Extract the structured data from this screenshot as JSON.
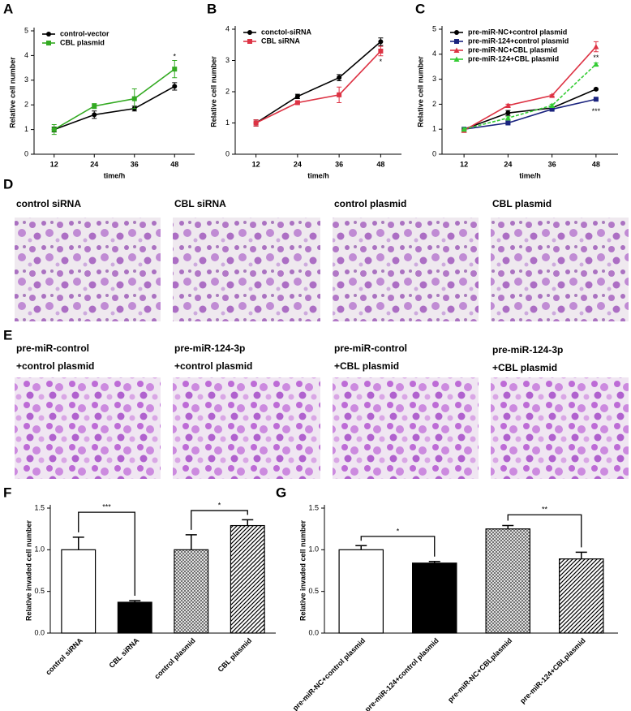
{
  "panel_labels": [
    "A",
    "B",
    "C",
    "D",
    "E",
    "F",
    "G"
  ],
  "images_d": [
    "control siRNA",
    "CBL siRNA",
    "control plasmid",
    "CBL plasmid"
  ],
  "images_e": [
    [
      "pre-miR-control",
      "+control plasmid"
    ],
    [
      "pre-miR-124-3p",
      "+control plasmid"
    ],
    [
      "pre-miR-control",
      "+CBL plasmid"
    ],
    [
      "pre-miR-124-3p",
      "+CBL plasmid"
    ]
  ],
  "chart_data": [
    {
      "type": "line",
      "xlabel": "time/h",
      "ylabel": "Relative cell number",
      "categories": [
        "12",
        "24",
        "36",
        "48"
      ],
      "ylim": [
        0,
        5
      ],
      "yticks": [
        0,
        1,
        2,
        3,
        4,
        5
      ],
      "legend": "upper left",
      "series": [
        {
          "name": "control-vector",
          "color": "#000000",
          "marker": "circle",
          "values": [
            1.0,
            1.6,
            1.85,
            2.75
          ],
          "errors": [
            0.1,
            0.15,
            0.1,
            0.15
          ]
        },
        {
          "name": "CBL plasmid",
          "color": "#33aa22",
          "marker": "square",
          "values": [
            1.0,
            1.95,
            2.25,
            3.45
          ],
          "errors": [
            0.2,
            0.1,
            0.4,
            0.35
          ]
        }
      ],
      "annotations": [
        {
          "text": "*",
          "x": "48",
          "y": 3.95
        }
      ]
    },
    {
      "type": "line",
      "xlabel": "time/h",
      "ylabel": "Relative cell number",
      "categories": [
        "12",
        "24",
        "36",
        "48"
      ],
      "ylim": [
        0,
        4
      ],
      "yticks": [
        0,
        1,
        2,
        3,
        4
      ],
      "legend": "upper left",
      "series": [
        {
          "name": "conctol-siRNA",
          "color": "#000000",
          "marker": "circle",
          "values": [
            1.0,
            1.85,
            2.45,
            3.6
          ],
          "errors": [
            0.1,
            0.07,
            0.1,
            0.12
          ]
        },
        {
          "name": "CBL siRNA",
          "color": "#dd3344",
          "marker": "square",
          "values": [
            1.0,
            1.65,
            1.9,
            3.3
          ],
          "errors": [
            0.1,
            0.03,
            0.25,
            0.15
          ]
        }
      ],
      "annotations": [
        {
          "text": "*",
          "x": "48",
          "y": 2.95
        }
      ]
    },
    {
      "type": "line",
      "xlabel": "time/h",
      "ylabel": "Relative cell number",
      "categories": [
        "12",
        "24",
        "36",
        "48"
      ],
      "ylim": [
        0,
        5
      ],
      "yticks": [
        0,
        1,
        2,
        3,
        4,
        5
      ],
      "legend": "upper left",
      "series": [
        {
          "name": "pre-miR-NC+control plasmid",
          "color": "#000000",
          "marker": "circle",
          "values": [
            1.0,
            1.65,
            1.85,
            2.6
          ],
          "errors": [
            0.05,
            0.1,
            0.05,
            0.03
          ]
        },
        {
          "name": "pre-miR-124+control plasmid",
          "color": "#1a237e",
          "marker": "square",
          "values": [
            1.0,
            1.25,
            1.8,
            2.2
          ],
          "errors": [
            0.05,
            0.05,
            0.05,
            0.03
          ]
        },
        {
          "name": "pre-miR-NC+CBL plasmid",
          "color": "#dd3344",
          "marker": "triangle",
          "values": [
            0.95,
            1.95,
            2.35,
            4.3
          ],
          "errors": [
            0.05,
            0.05,
            0.03,
            0.2
          ]
        },
        {
          "name": "pre-miR-124+CBL plasmid",
          "color": "#33cc33",
          "marker": "triangle",
          "line_style": "dashed",
          "values": [
            1.0,
            1.45,
            1.95,
            3.6
          ],
          "errors": [
            0.05,
            0.05,
            0.05,
            0.05
          ]
        }
      ],
      "annotations": [
        {
          "text": "**",
          "x": "48",
          "y": 3.85
        },
        {
          "text": "***",
          "x": "48",
          "y": 1.7
        }
      ]
    },
    {
      "type": "bar",
      "ylabel": "Relative invaded cell number",
      "categories": [
        "control siRNA",
        "CBL siRNA",
        "control plasmid",
        "CBL plasmid"
      ],
      "values": [
        1.0,
        0.37,
        1.0,
        1.29
      ],
      "errors": [
        0.15,
        0.02,
        0.18,
        0.07
      ],
      "fills": [
        "white",
        "black",
        "crosshatch",
        "diagonal"
      ],
      "ylim": [
        0,
        1.5
      ],
      "yticks": [
        {
          "value": 0,
          "label": "0.0"
        },
        {
          "value": 0.5,
          "label": "0.5"
        },
        {
          "value": 1,
          "label": "1.0"
        },
        {
          "value": 1.5,
          "label": "1.5"
        }
      ],
      "brackets": [
        {
          "from": 0,
          "to": 1,
          "text": "***",
          "y": 1.45
        },
        {
          "from": 2,
          "to": 3,
          "text": "*",
          "y": 1.47
        }
      ]
    },
    {
      "type": "bar",
      "ylabel": "Relative invaded cell number",
      "categories": [
        "pre-miR-NC+control plasmid",
        "pre-miR-124+control plasmid",
        "pre-miR-NC+CBLplasmid",
        "pre-miR-124+CBLplasmid"
      ],
      "values": [
        1.0,
        0.84,
        1.25,
        0.89
      ],
      "errors": [
        0.05,
        0.02,
        0.04,
        0.08
      ],
      "fills": [
        "white",
        "black",
        "crosshatch",
        "diagonal"
      ],
      "ylim": [
        0,
        1.5
      ],
      "yticks": [
        {
          "value": 0,
          "label": "0.0"
        },
        {
          "value": 0.5,
          "label": "0.5"
        },
        {
          "value": 1,
          "label": "1.0"
        },
        {
          "value": 1.5,
          "label": "1.5"
        }
      ],
      "brackets": [
        {
          "from": 0,
          "to": 1,
          "text": "*",
          "y": 1.16
        },
        {
          "from": 2,
          "to": 3,
          "text": "**",
          "y": 1.42
        }
      ]
    }
  ]
}
